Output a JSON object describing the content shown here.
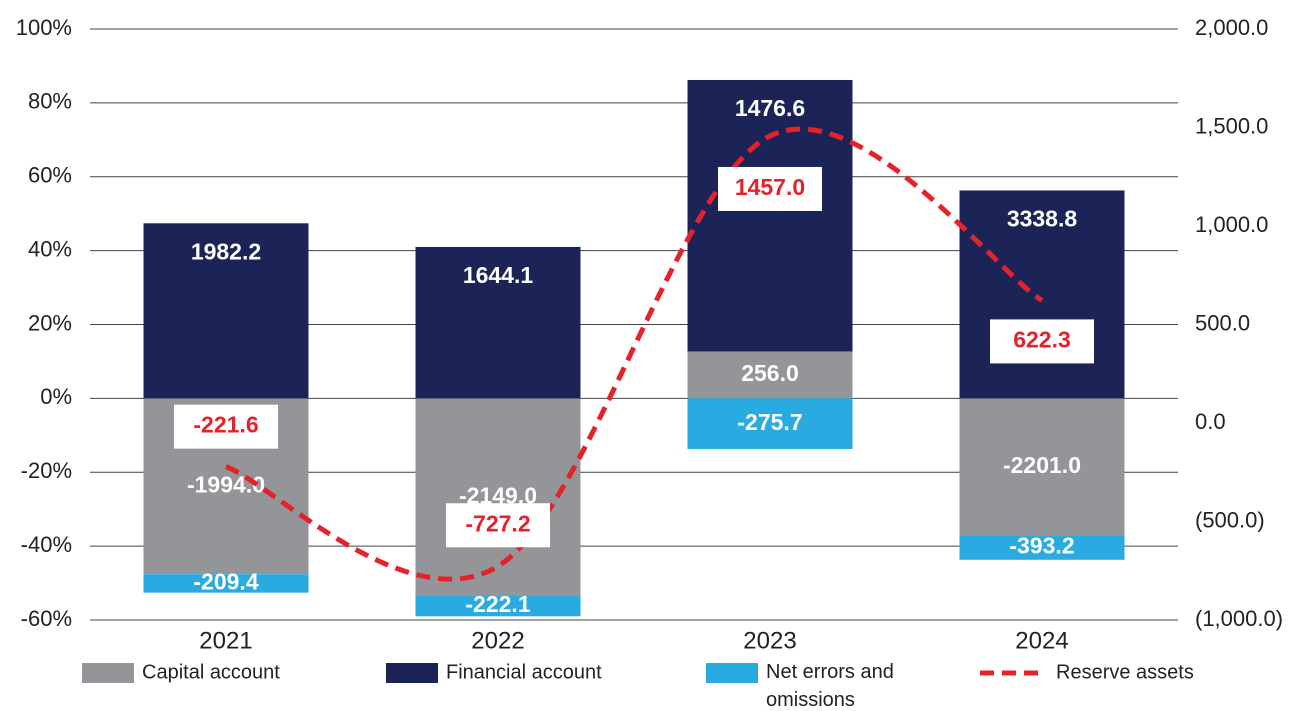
{
  "chart_data": {
    "type": "bar",
    "categories": [
      "2021",
      "2022",
      "2023",
      "2024"
    ],
    "series": [
      {
        "name": "Capital account",
        "color": "#939598",
        "values": [
          -47.6,
          -53.5,
          12.7,
          -37.1
        ],
        "value_labels": [
          "-1994.0",
          "-2149.0",
          "256.0",
          "-2201.0"
        ]
      },
      {
        "name": "Financial account",
        "color": "#1c2457",
        "values": [
          47.4,
          41.0,
          73.5,
          56.3
        ],
        "value_labels": [
          "1982.2",
          "1644.1",
          "1476.6",
          "3338.8"
        ]
      },
      {
        "name": "Net errors and omissions",
        "color": "#29abe2",
        "values": [
          -5.0,
          -5.5,
          -13.7,
          -6.6
        ],
        "value_labels": [
          "-209.4",
          "-222.1",
          "-275.7",
          "-393.2"
        ]
      },
      {
        "name": "Reserve assets",
        "color": "#e42229",
        "type": "line",
        "dashed": true,
        "smooth": true,
        "axis": "y2",
        "values": [
          -221.6,
          -727.2,
          1457.0,
          622.3
        ],
        "value_labels": [
          "-221.6",
          "-727.2",
          "1457.0",
          "622.3"
        ]
      }
    ],
    "ylim": [
      -60,
      100
    ],
    "yticks": [
      {
        "value": -60,
        "label": "-60%"
      },
      {
        "value": -40,
        "label": "-40%"
      },
      {
        "value": -20,
        "label": "-20%"
      },
      {
        "value": 0,
        "label": "0%"
      },
      {
        "value": 20,
        "label": "20%"
      },
      {
        "value": 40,
        "label": "40%"
      },
      {
        "value": 60,
        "label": "60%"
      },
      {
        "value": 80,
        "label": "80%"
      },
      {
        "value": 100,
        "label": "100%"
      }
    ],
    "y2lim": [
      -1000,
      2000
    ],
    "y2ticks": [
      {
        "value": -1000,
        "label": "(1,000.0)"
      },
      {
        "value": -500,
        "label": "(500.0)"
      },
      {
        "value": 0,
        "label": "0.0"
      },
      {
        "value": 500,
        "label": "500.0"
      },
      {
        "value": 1000,
        "label": "1,000.0"
      },
      {
        "value": 1500,
        "label": "1,500.0"
      },
      {
        "value": 2000,
        "label": "2,000.0"
      }
    ],
    "grid": true,
    "legend": "bottom"
  }
}
